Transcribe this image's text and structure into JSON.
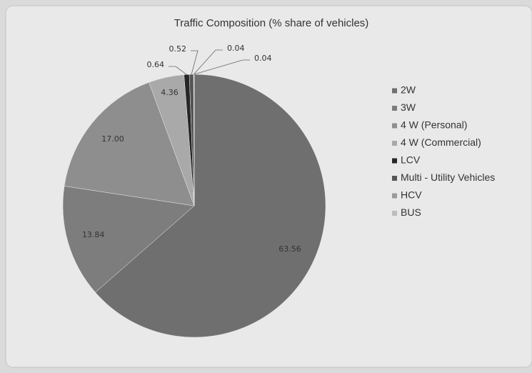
{
  "chart_data": {
    "type": "pie",
    "title": "Traffic Composition (% share of vehicles)",
    "categories": [
      "2W",
      "3W",
      "4 W (Personal)",
      "4 W (Commercial)",
      "LCV",
      "Multi - Utility Vehicles",
      "HCV",
      "BUS"
    ],
    "values": [
      63.56,
      13.84,
      17.0,
      4.36,
      0.64,
      0.52,
      0.04,
      0.04
    ],
    "value_labels": [
      "63.56",
      "13.84",
      "17.00",
      "4.36",
      "0.64",
      "0.52",
      "0.04",
      "0.04"
    ],
    "colors": [
      "#6f6f6f",
      "#7d7d7d",
      "#8e8e8e",
      "#a9a9a9",
      "#262626",
      "#555555",
      "#9a9a9a",
      "#bdbdbd"
    ],
    "legend": "right"
  }
}
